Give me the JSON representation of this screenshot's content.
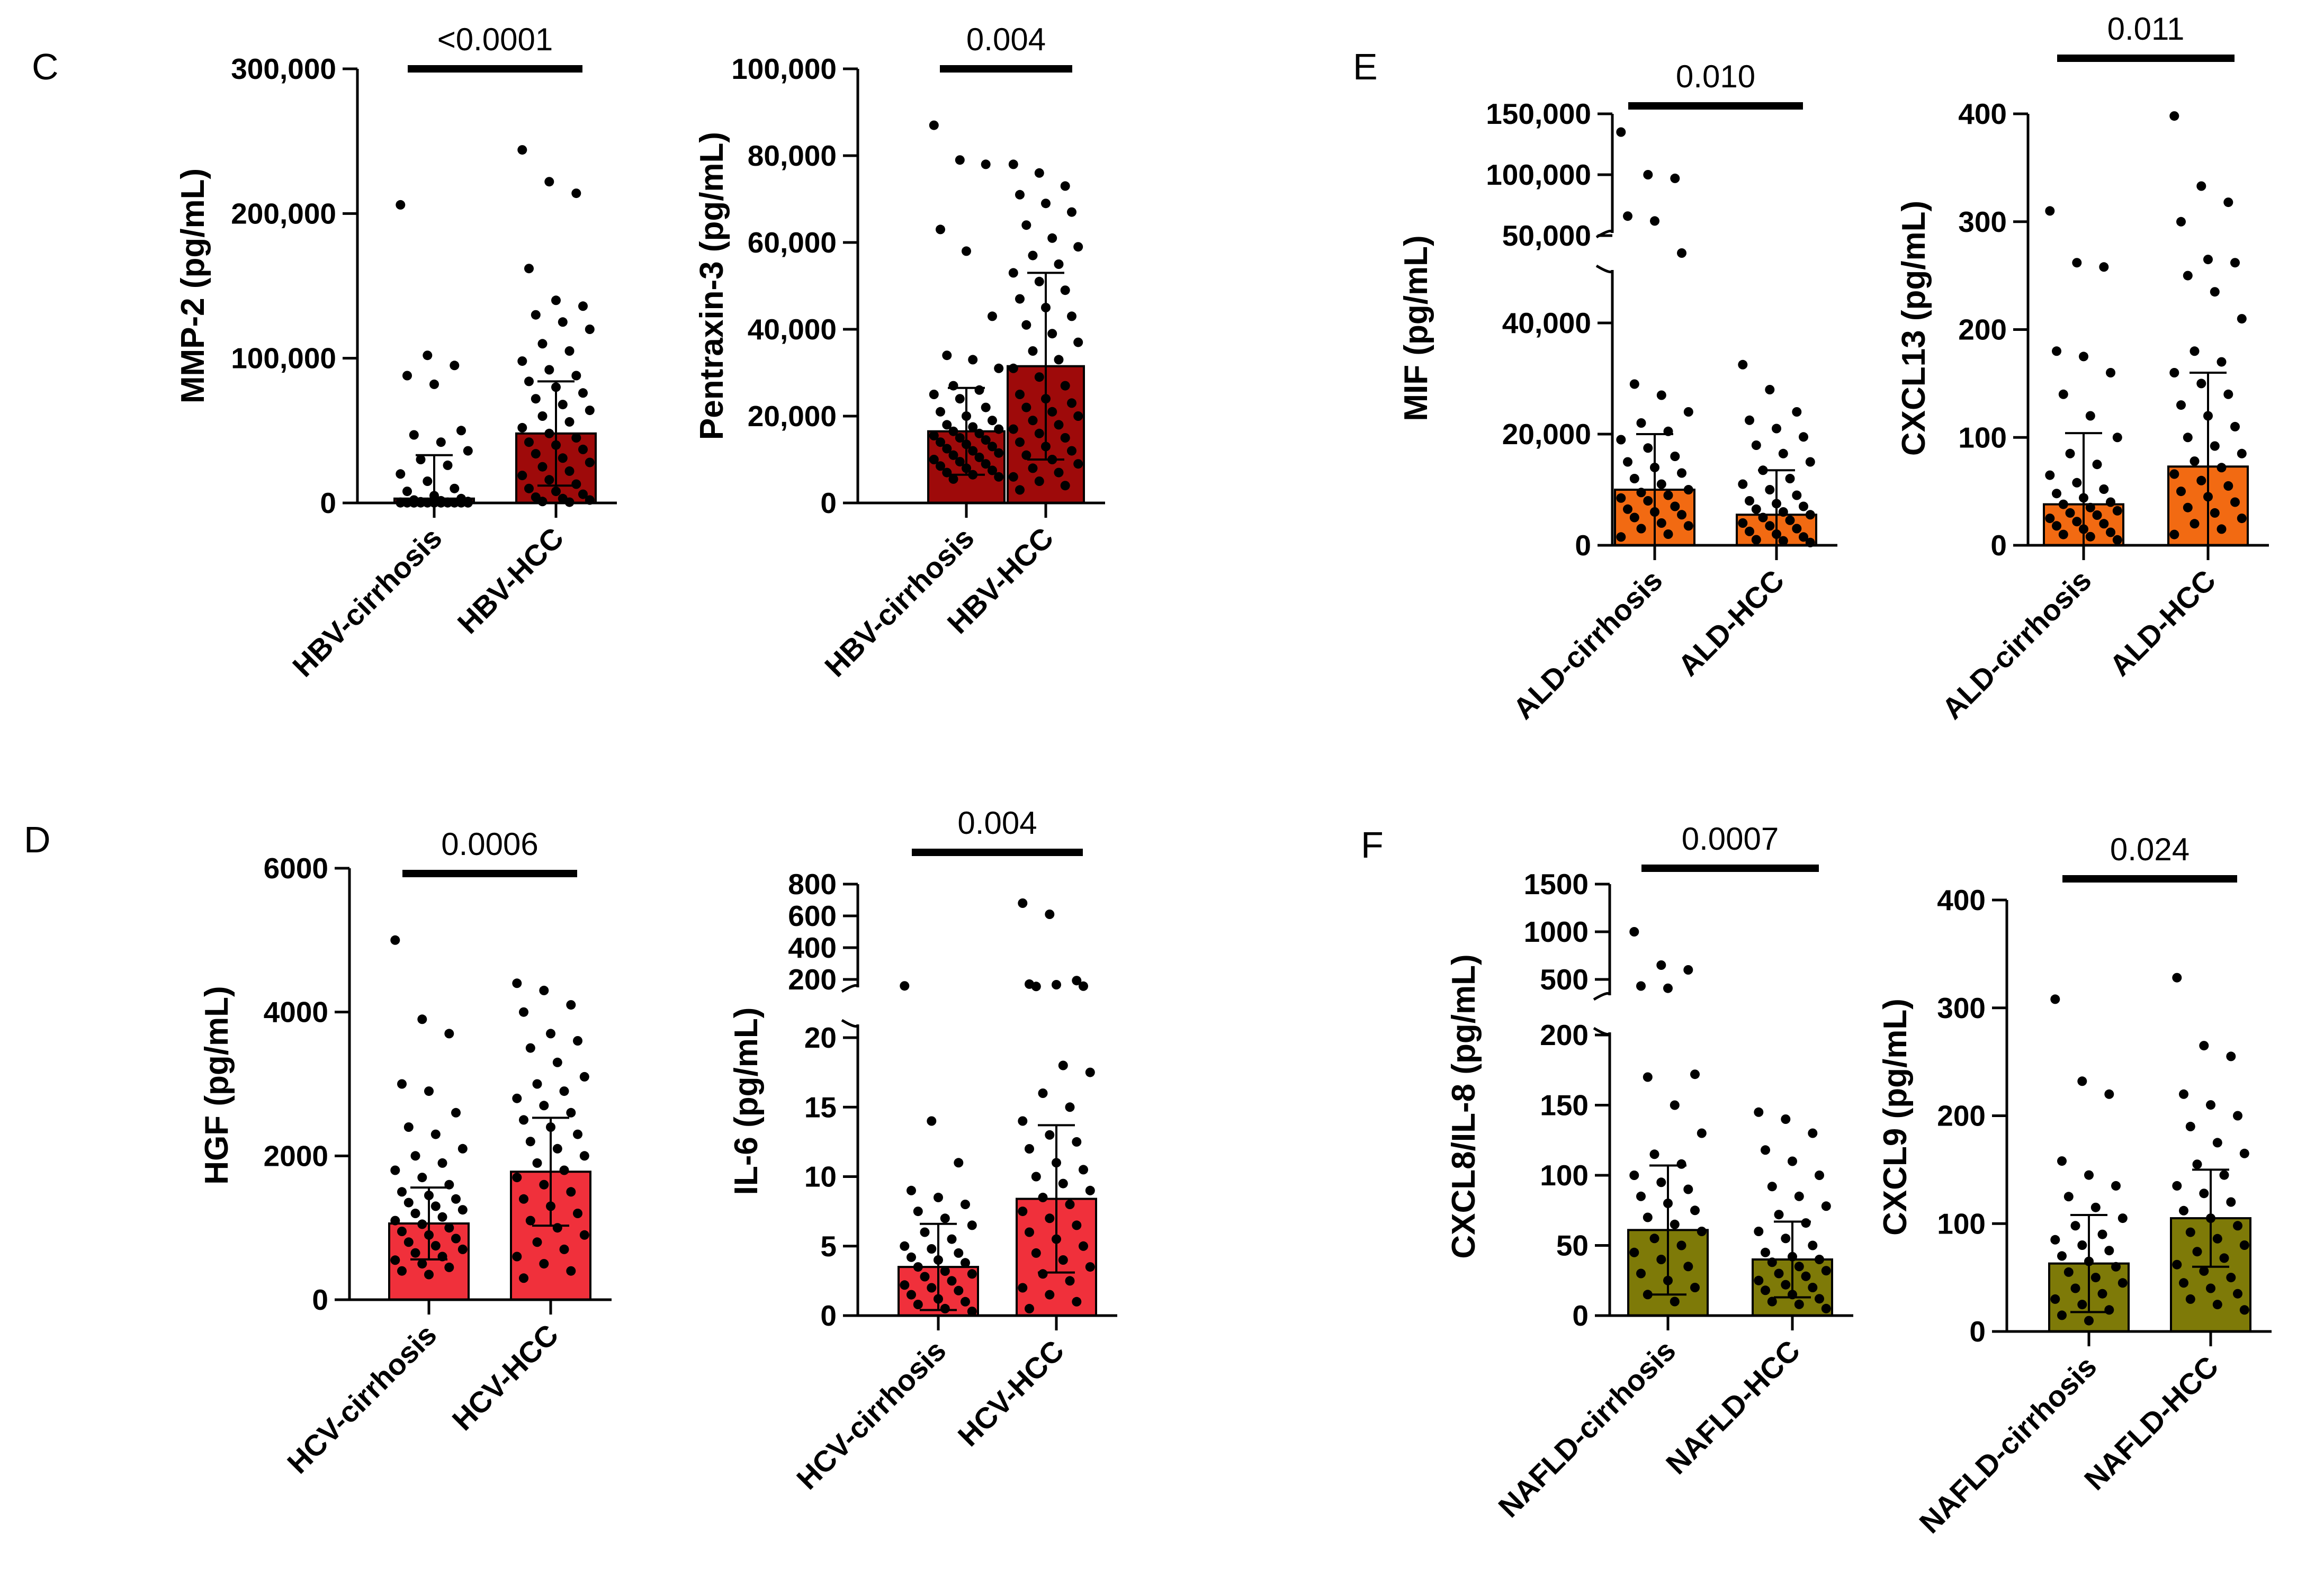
{
  "panels": [
    {
      "letter": "C"
    },
    {
      "letter": "D"
    },
    {
      "letter": "E"
    },
    {
      "letter": "F"
    }
  ],
  "chart_data": [
    {
      "id": "mmp2",
      "panel": "C",
      "type": "bar",
      "ylabel": "MMP-2 (pg/mL)",
      "color": "#9E0A0A",
      "categories": [
        "HBV-cirrhosis",
        "HBV-HCC"
      ],
      "means": [
        3000,
        48000
      ],
      "sd_upper": [
        33000,
        84000
      ],
      "pvalue": "<0.0001",
      "ylim": [
        0,
        300000
      ],
      "yticks": [
        0,
        100000,
        200000,
        300000
      ],
      "ytick_labels": [
        "0",
        "100,000",
        "200,000",
        "300,000"
      ],
      "points": [
        [
          206000,
          102000,
          95000,
          88000,
          82000,
          50000,
          47000,
          42000,
          36000,
          30000,
          26000,
          20000,
          15000,
          10000,
          8000,
          5000,
          3000,
          2000,
          1500,
          1000,
          800,
          500,
          500,
          400,
          300,
          300,
          200,
          200,
          100,
          100,
          100,
          100,
          100,
          100,
          100,
          100,
          100,
          100,
          100,
          100,
          100,
          100
        ],
        [
          244000,
          222000,
          214000,
          162000,
          140000,
          136000,
          130000,
          125000,
          120000,
          110000,
          105000,
          98000,
          92000,
          88000,
          84000,
          80000,
          76000,
          72000,
          68000,
          64000,
          60000,
          56000,
          52000,
          48000,
          45000,
          42000,
          40000,
          37000,
          34000,
          31000,
          28000,
          25000,
          22000,
          19000,
          16000,
          13000,
          10000,
          8000,
          6000,
          4000,
          3000,
          2000,
          1000,
          500
        ]
      ]
    },
    {
      "id": "ptx3",
      "panel": "C",
      "type": "bar",
      "ylabel": "Pentraxin-3 (pg/mL)",
      "color": "#9E0A0A",
      "categories": [
        "HBV-cirrhosis",
        "HBV-HCC"
      ],
      "means": [
        16500,
        31500
      ],
      "sd_upper": [
        26500,
        53000
      ],
      "pvalue": "0.004",
      "ylim": [
        0,
        100000
      ],
      "yticks": [
        0,
        20000,
        40000,
        60000,
        80000,
        100000
      ],
      "ytick_labels": [
        "0",
        "20,000",
        "40,000",
        "60,000",
        "80,000",
        "100,000"
      ],
      "points": [
        [
          87000,
          79000,
          78000,
          63000,
          58000,
          43000,
          34000,
          33000,
          31000,
          27000,
          26000,
          25000,
          24000,
          22000,
          21000,
          20000,
          19000,
          18000,
          17500,
          17000,
          16500,
          16000,
          15500,
          15000,
          14500,
          14000,
          13500,
          13000,
          12500,
          12000,
          11500,
          11000,
          10500,
          10000,
          9500,
          9000,
          8500,
          8000,
          7500,
          7000,
          6500,
          6000,
          5500
        ],
        [
          78000,
          76000,
          73000,
          71000,
          69000,
          67000,
          64000,
          61000,
          59000,
          57000,
          55000,
          53000,
          51000,
          49000,
          47000,
          45000,
          43000,
          41000,
          39000,
          37000,
          35000,
          33000,
          31000,
          29000,
          27000,
          25000,
          24000,
          23000,
          22000,
          21000,
          20000,
          19000,
          18000,
          17000,
          16000,
          15000,
          14000,
          13000,
          12000,
          11000,
          10000,
          9000,
          8000,
          7000,
          6000,
          5000,
          4000,
          3000
        ]
      ]
    },
    {
      "id": "hgf",
      "panel": "D",
      "type": "bar",
      "ylabel": "HGF (pg/mL)",
      "color": "#F0303B",
      "categories": [
        "HCV-cirrhosis",
        "HCV-HCC"
      ],
      "means": [
        1060,
        1780
      ],
      "sd_upper": [
        1560,
        2530
      ],
      "pvalue": "0.0006",
      "ylim": [
        0,
        6000
      ],
      "yticks": [
        0,
        2000,
        4000,
        6000
      ],
      "ytick_labels": [
        "0",
        "2000",
        "4000",
        "6000"
      ],
      "points": [
        [
          5000,
          3900,
          3700,
          3000,
          2900,
          2600,
          2400,
          2300,
          2100,
          2000,
          1900,
          1800,
          1700,
          1600,
          1500,
          1450,
          1400,
          1350,
          1300,
          1250,
          1200,
          1150,
          1100,
          1050,
          1000,
          950,
          900,
          850,
          800,
          750,
          700,
          650,
          600,
          550,
          500,
          450,
          400,
          350
        ],
        [
          4400,
          4300,
          4100,
          4000,
          3700,
          3600,
          3500,
          3300,
          3100,
          3000,
          2900,
          2800,
          2700,
          2600,
          2500,
          2400,
          2300,
          2200,
          2100,
          2000,
          1900,
          1800,
          1700,
          1600,
          1500,
          1400,
          1300,
          1200,
          1100,
          1000,
          900,
          800,
          700,
          600,
          500,
          400,
          300
        ]
      ]
    },
    {
      "id": "il6",
      "panel": "D",
      "type": "bar",
      "broken": true,
      "ylabel": "IL-6 (pg/mL)",
      "color": "#F0303B",
      "categories": [
        "HCV-cirrhosis",
        "HCV-HCC"
      ],
      "means": [
        3.5,
        8.4
      ],
      "sd_upper": [
        6.6,
        13.7
      ],
      "pvalue": "0.004",
      "ylim": [
        0,
        800
      ],
      "yticks": [
        0,
        5,
        10,
        15,
        20,
        200,
        400,
        600,
        800
      ],
      "ytick_labels": [
        "0",
        "5",
        "10",
        "15",
        "20",
        "200",
        "400",
        "600",
        "800"
      ],
      "points": [
        [
          90,
          14,
          11,
          9,
          8.5,
          8,
          7.5,
          7,
          6.5,
          6,
          5.5,
          5,
          4.8,
          4.5,
          4.2,
          4,
          3.8,
          3.5,
          3.2,
          3,
          2.8,
          2.5,
          2.2,
          2,
          1.8,
          1.5,
          1.2,
          1,
          0.8,
          0.5,
          0.3
        ],
        [
          680,
          610,
          180,
          120,
          110,
          85,
          80,
          18,
          17.5,
          16,
          15,
          14,
          13,
          12.5,
          12,
          11,
          10.5,
          10,
          9.5,
          9,
          8.5,
          8,
          7.5,
          7,
          6.5,
          6,
          5.5,
          5,
          4.5,
          4,
          3.5,
          3,
          2.5,
          2,
          1.5,
          1,
          0.5
        ]
      ]
    },
    {
      "id": "mif",
      "panel": "E",
      "type": "bar",
      "broken": true,
      "ylabel": "MIF (pg/mL)",
      "color": "#F26A12",
      "categories": [
        "ALD-cirrhosis",
        "ALD-HCC"
      ],
      "means": [
        10000,
        5500
      ],
      "sd_upper": [
        20000,
        13500
      ],
      "pvalue": "0.010",
      "ylim": [
        0,
        150000
      ],
      "yticks": [
        0,
        20000,
        40000,
        50000,
        100000,
        150000
      ],
      "ytick_labels": [
        "0",
        "20,000",
        "40,000",
        "50,000",
        "100,000",
        "150,000"
      ],
      "points": [
        [
          135000,
          100000,
          97000,
          66000,
          62000,
          48000,
          29000,
          27000,
          24000,
          22000,
          20500,
          19000,
          17500,
          16000,
          15000,
          14000,
          13000,
          12000,
          11000,
          10000,
          9500,
          9000,
          8500,
          8000,
          7000,
          6500,
          6000,
          5500,
          5000,
          4000,
          3500,
          3000,
          2000,
          1500
        ],
        [
          32500,
          28000,
          24000,
          22500,
          21000,
          19500,
          18000,
          16500,
          15000,
          13500,
          12000,
          11000,
          10000,
          9000,
          8000,
          7500,
          7000,
          6500,
          6000,
          5500,
          5000,
          4500,
          4000,
          3500,
          3000,
          2500,
          2000,
          1500,
          1000,
          800,
          500
        ]
      ]
    },
    {
      "id": "cxcl13",
      "panel": "E",
      "type": "bar",
      "ylabel": "CXCL13 (pg/mL)",
      "color": "#F26A12",
      "categories": [
        "ALD-cirrhosis",
        "ALD-HCC"
      ],
      "means": [
        38,
        73
      ],
      "sd_upper": [
        104,
        160
      ],
      "pvalue": "0.011",
      "ylim": [
        0,
        400
      ],
      "yticks": [
        0,
        100,
        200,
        300,
        400
      ],
      "ytick_labels": [
        "0",
        "100",
        "200",
        "300",
        "400"
      ],
      "points": [
        [
          310,
          262,
          258,
          180,
          175,
          160,
          140,
          120,
          100,
          85,
          75,
          65,
          58,
          52,
          48,
          44,
          40,
          38,
          35,
          32,
          30,
          28,
          25,
          22,
          20,
          18,
          15,
          12,
          10,
          8,
          5
        ],
        [
          398,
          333,
          318,
          300,
          265,
          262,
          250,
          235,
          210,
          180,
          170,
          160,
          150,
          140,
          130,
          120,
          110,
          100,
          92,
          85,
          78,
          72,
          66,
          60,
          55,
          50,
          45,
          40,
          35,
          30,
          25,
          20,
          15,
          10
        ]
      ]
    },
    {
      "id": "cxcl8",
      "panel": "F",
      "type": "bar",
      "broken": true,
      "ylabel": "CXCL8/IL-8 (pg/mL)",
      "color": "#7E7A08",
      "categories": [
        "NAFLD-cirrhosis",
        "NAFLD-HCC"
      ],
      "means": [
        61,
        40
      ],
      "sd_upper": [
        107,
        67
      ],
      "pvalue": "0.0007",
      "ylim": [
        0,
        1500
      ],
      "yticks": [
        0,
        50,
        100,
        150,
        200,
        500,
        1000,
        1500
      ],
      "ytick_labels": [
        "0",
        "50",
        "100",
        "150",
        "200",
        "500",
        "1000",
        "1500"
      ],
      "points": [
        [
          1000,
          650,
          600,
          350,
          300,
          172,
          170,
          150,
          130,
          115,
          108,
          100,
          95,
          90,
          85,
          80,
          75,
          70,
          65,
          60,
          55,
          50,
          45,
          40,
          35,
          30,
          25,
          20,
          15,
          10
        ],
        [
          145,
          140,
          130,
          118,
          110,
          100,
          92,
          85,
          78,
          72,
          66,
          60,
          55,
          50,
          45,
          42,
          40,
          38,
          35,
          32,
          30,
          28,
          25,
          22,
          20,
          18,
          15,
          12,
          10,
          8,
          5
        ]
      ]
    },
    {
      "id": "cxcl9",
      "panel": "F",
      "type": "bar",
      "ylabel": "CXCL9 (pg/mL)",
      "color": "#7E7A08",
      "categories": [
        "NAFLD-cirrhosis",
        "NAFLD-HCC"
      ],
      "means": [
        63,
        105
      ],
      "sd_upper": [
        108,
        150
      ],
      "pvalue": "0.024",
      "ylim": [
        0,
        400
      ],
      "yticks": [
        0,
        100,
        200,
        300,
        400
      ],
      "ytick_labels": [
        "0",
        "100",
        "200",
        "300",
        "400"
      ],
      "points": [
        [
          308,
          232,
          220,
          158,
          145,
          135,
          125,
          115,
          105,
          98,
          90,
          85,
          80,
          75,
          70,
          65,
          60,
          55,
          50,
          45,
          40,
          35,
          30,
          25,
          20,
          15,
          10
        ],
        [
          328,
          265,
          255,
          220,
          210,
          200,
          190,
          175,
          165,
          155,
          145,
          135,
          128,
          120,
          112,
          105,
          98,
          92,
          86,
          80,
          74,
          68,
          62,
          56,
          50,
          45,
          40,
          35,
          30,
          25,
          20
        ]
      ]
    }
  ]
}
